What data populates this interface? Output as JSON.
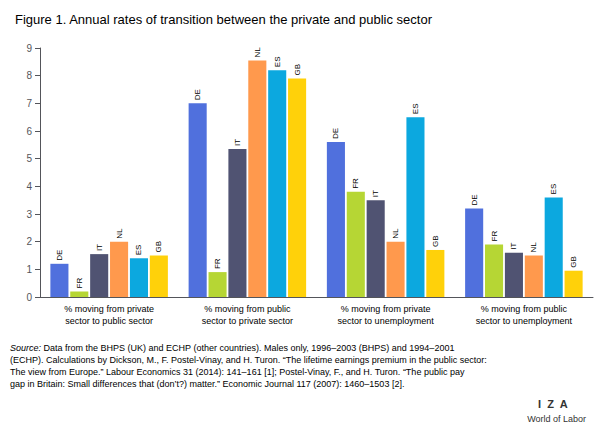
{
  "chart_data": {
    "type": "bar",
    "title": "Figure 1. Annual rates of transition between the private and public sector",
    "categories": [
      "% moving from private\nsector to public sector",
      "% moving from public\nsector to private sector",
      "% moving from private\nsector to unemployment",
      "% moving from public\nsector to unemployment"
    ],
    "series": [
      {
        "name": "DE",
        "values": [
          1.2,
          7.0,
          5.6,
          3.2
        ]
      },
      {
        "name": "FR",
        "values": [
          0.2,
          0.9,
          3.8,
          1.9
        ]
      },
      {
        "name": "IT",
        "values": [
          1.55,
          5.35,
          3.5,
          1.6
        ]
      },
      {
        "name": "NL",
        "values": [
          2.0,
          8.55,
          2.0,
          1.5
        ]
      },
      {
        "name": "ES",
        "values": [
          1.4,
          8.2,
          6.5,
          3.6
        ]
      },
      {
        "name": "GB",
        "values": [
          1.5,
          7.9,
          1.7,
          0.95
        ]
      }
    ],
    "ylim": [
      0,
      9
    ],
    "yticks": [
      0,
      1,
      2,
      3,
      4,
      5,
      6,
      7,
      8,
      9
    ],
    "grid": false,
    "source": [
      "Source: Data from the BHPS (UK) and ECHP (other countries). Males only, 1996–2003 (BHPS) and 1994–2001",
      "(ECHP). Calculations by Dickson, M., F. Postel-Vinay, and H. Turon. “The lifetime earnings premium in the public sector:",
      "The view from Europe.” Labour Economics 31 (2014): 141–161 [1]; Postel-Vinay, F., and H. Turon. “The public pay",
      "gap in Britain: Small differences that (don’t?) matter.” Economic Journal 117 (2007): 1460–1503 [2]."
    ],
    "annotations": [
      "I  Z  A",
      "World of Labor"
    ]
  }
}
